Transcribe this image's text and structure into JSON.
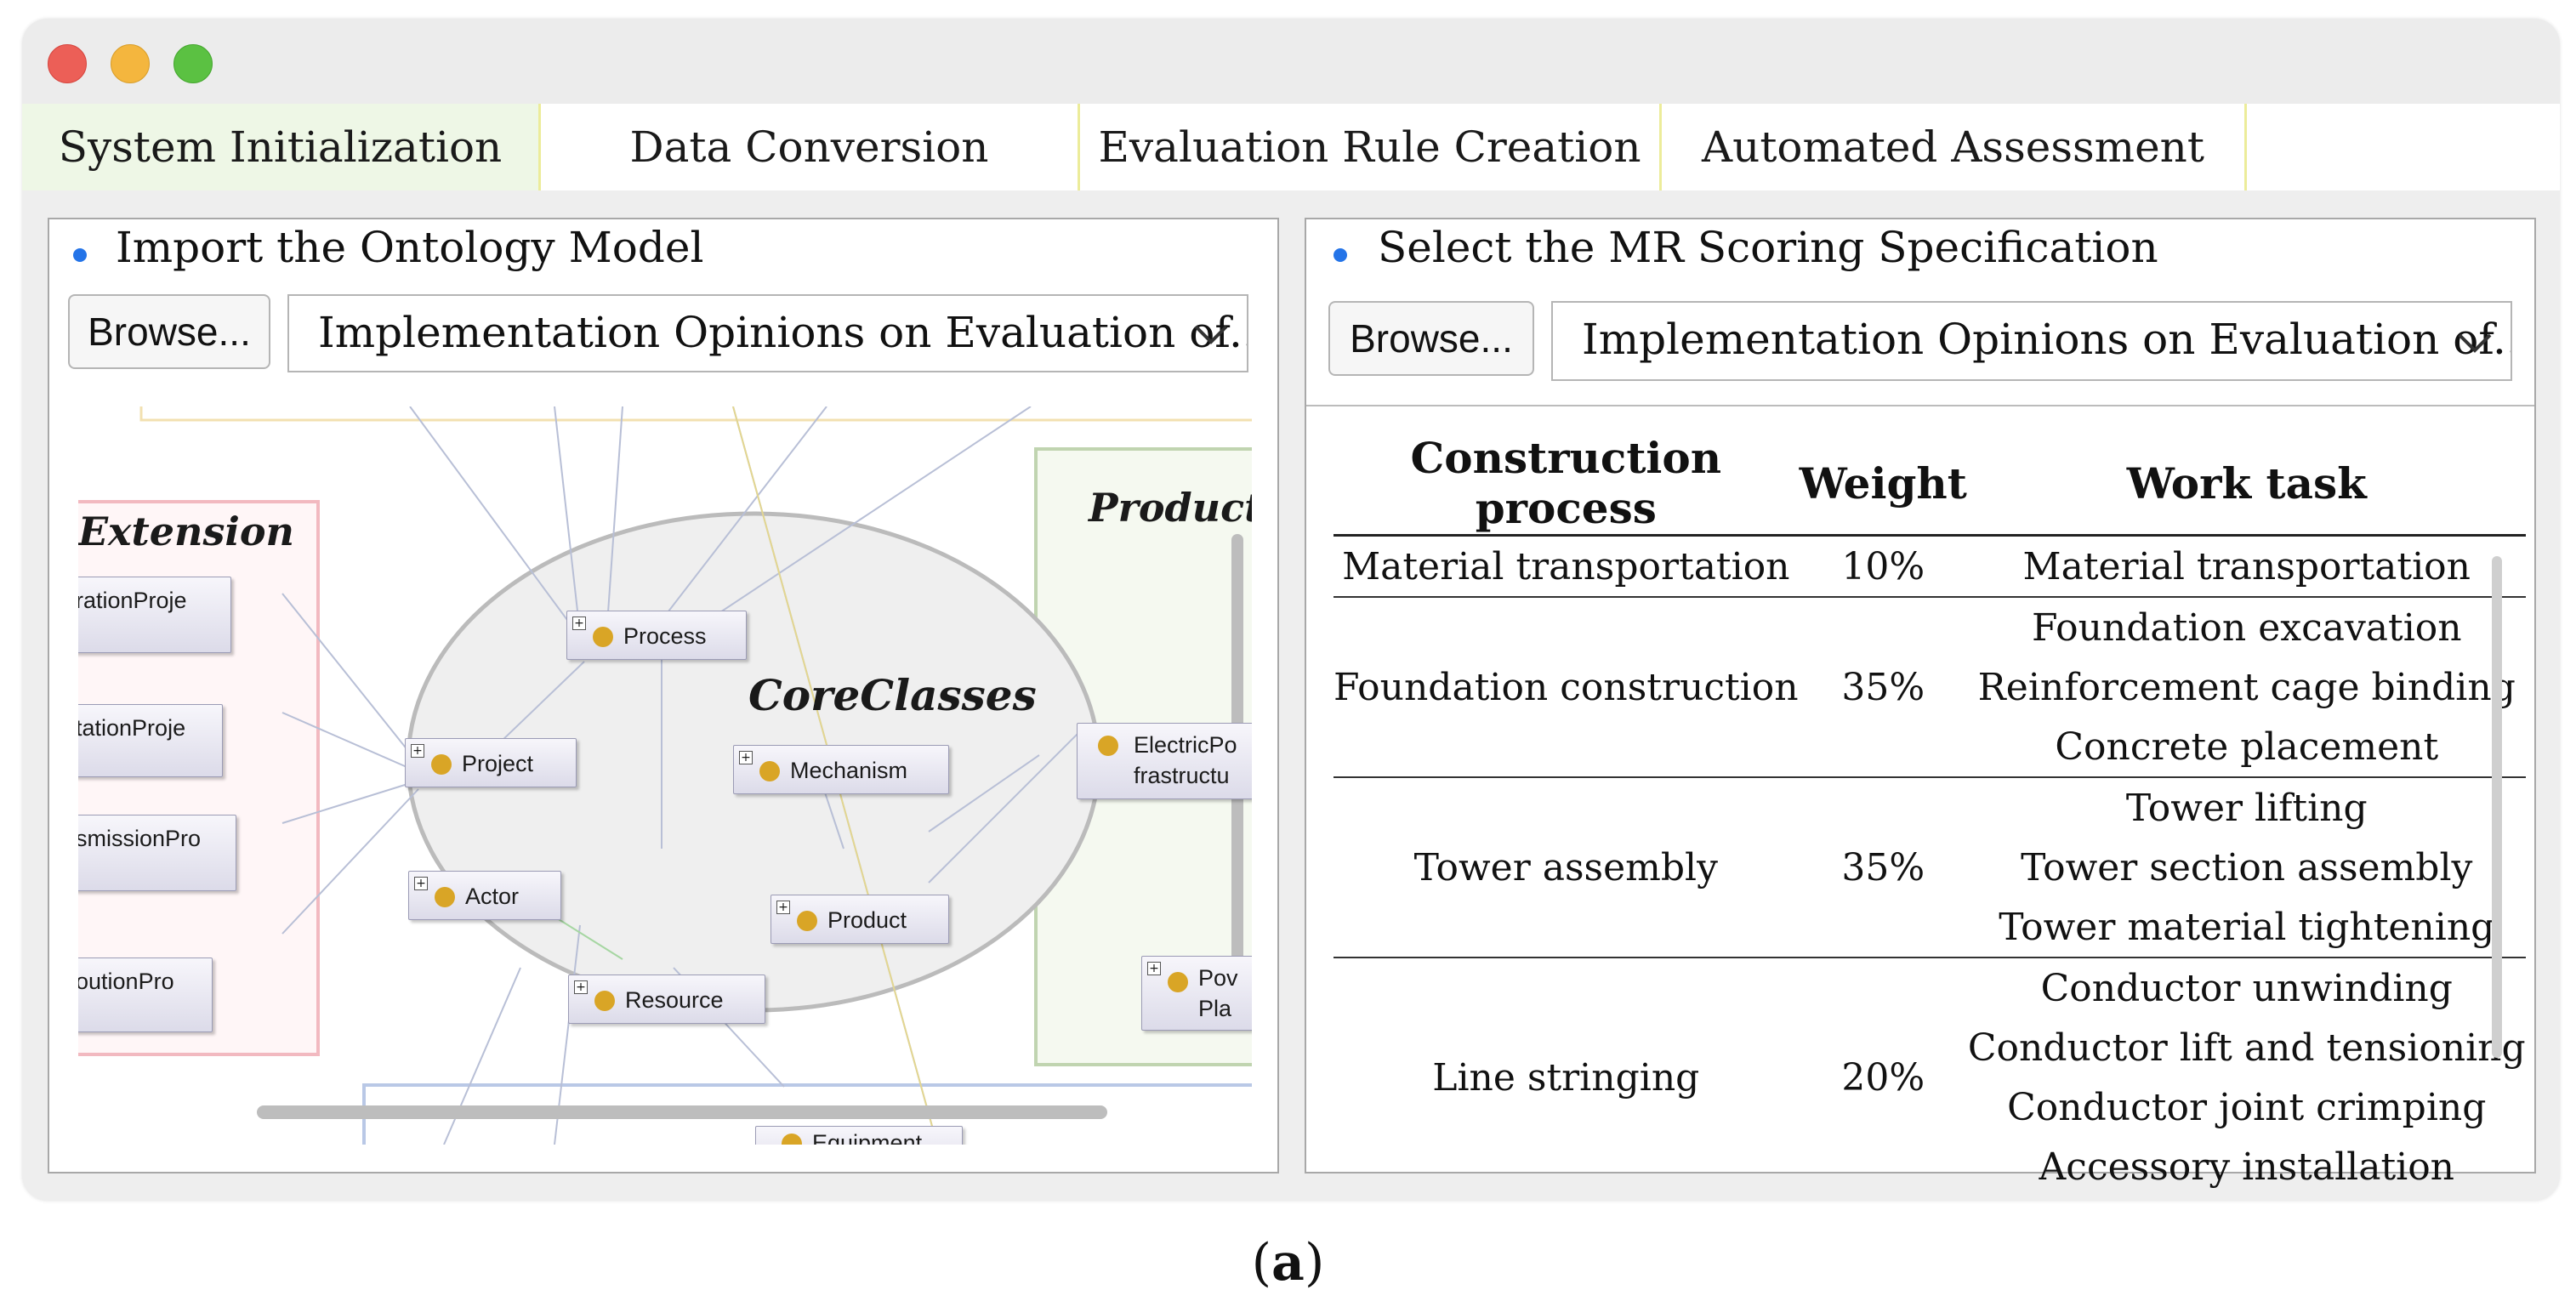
{
  "window": {
    "controls": [
      "close",
      "minimize",
      "zoom"
    ]
  },
  "tabs": [
    {
      "label": "System Initialization",
      "active": true
    },
    {
      "label": "Data Conversion",
      "active": false
    },
    {
      "label": "Evaluation Rule Creation",
      "active": false
    },
    {
      "label": "Automated Assessment",
      "active": false
    }
  ],
  "left_panel": {
    "title": "Import the Ontology Model",
    "browse_label": "Browse...",
    "select_value": "Implementation Opinions on Evaluation of...",
    "diagram": {
      "groups": {
        "extension": "Extension",
        "core": "CoreClasses",
        "production": "Producti"
      },
      "nodes": {
        "ext1": "rationProje",
        "ext2": "tationProje",
        "ext3": "smissionPro",
        "ext4": "outionPro",
        "process": "Process",
        "project": "Project",
        "mechanism": "Mechanism",
        "actor": "Actor",
        "product": "Product",
        "resource": "Resource",
        "electric_line1": "ElectricPo",
        "electric_line2": "frastructu",
        "power_line1": "Pov",
        "power_line2": "Pla",
        "bottom": "Equipment"
      }
    }
  },
  "right_panel": {
    "title": "Select the MR Scoring Specification",
    "browse_label": "Browse...",
    "select_value": "Implementation Opinions on Evaluation of...",
    "table": {
      "headers": [
        "Construction process",
        "Weight",
        "Work task"
      ],
      "groups": [
        {
          "process": "Material transportation",
          "weight": "10%",
          "tasks": [
            "Material transportation"
          ]
        },
        {
          "process": "Foundation construction",
          "weight": "35%",
          "tasks": [
            "Foundation excavation",
            "Reinforcement cage binding",
            "Concrete placement"
          ]
        },
        {
          "process": "Tower assembly",
          "weight": "35%",
          "tasks": [
            "Tower lifting",
            "Tower section assembly",
            "Tower material tightening"
          ]
        },
        {
          "process": "Line stringing",
          "weight": "20%",
          "tasks": [
            "Conductor unwinding",
            "Conductor lift and tensioning",
            "Conductor joint crimping",
            "Accessory installation"
          ]
        }
      ]
    }
  },
  "caption": {
    "open": "(",
    "letter": "a",
    "close": ")"
  },
  "colors": {
    "accent_bullet": "#2474e8",
    "active_tab": "#eef7e6",
    "node_dot": "#d9a526"
  }
}
